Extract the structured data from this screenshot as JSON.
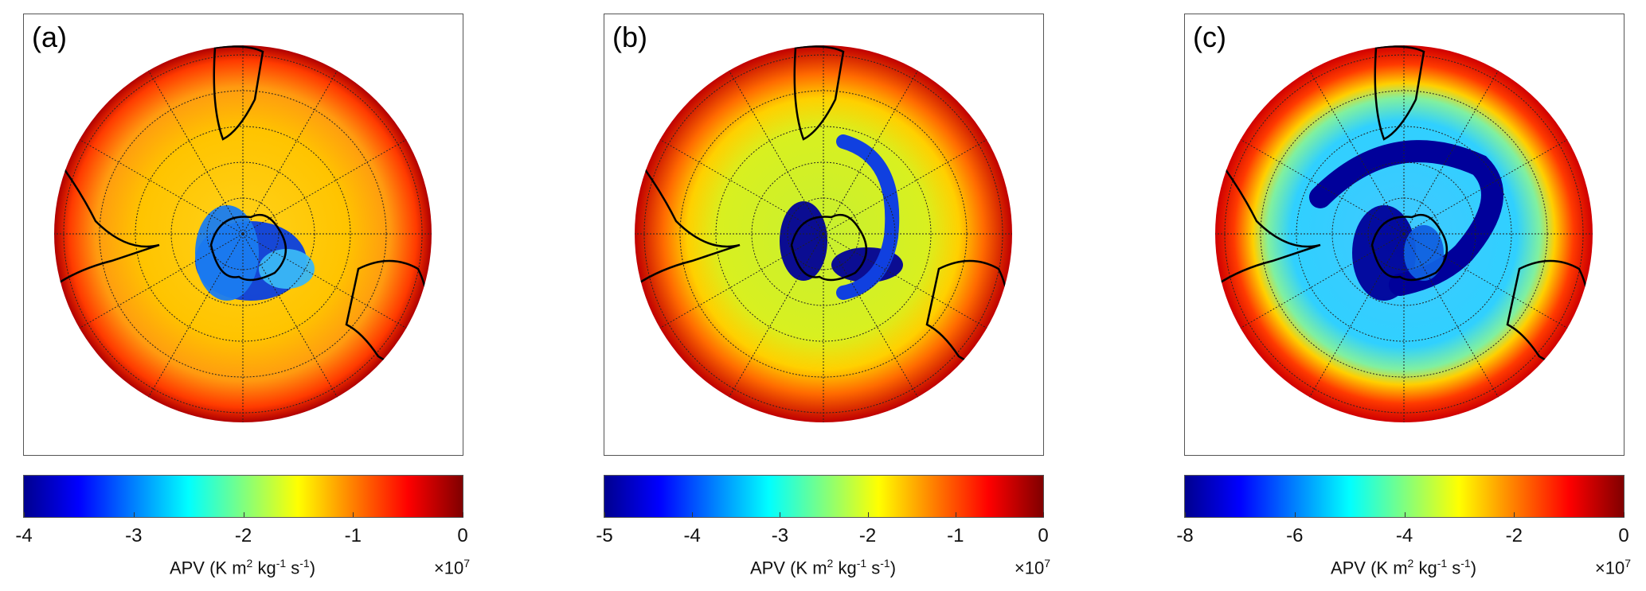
{
  "panels": [
    {
      "label": "(a)",
      "ticks": [
        "-4",
        "-3",
        "-2",
        "-1",
        "0"
      ],
      "min": -4,
      "max": 0,
      "unit_prefix": "APV (K m",
      "unit_sup1": "2",
      "unit_mid": " kg",
      "unit_sup2": "-1",
      "unit_mid2": " s",
      "unit_sup3": "-1",
      "unit_suffix": ")",
      "multiplier": "×10",
      "multiplier_exp": "7"
    },
    {
      "label": "(b)",
      "ticks": [
        "-5",
        "-4",
        "-3",
        "-2",
        "-1",
        "0"
      ],
      "min": -5,
      "max": 0,
      "unit_prefix": "APV (K m",
      "unit_sup1": "2",
      "unit_mid": " kg",
      "unit_sup2": "-1",
      "unit_mid2": " s",
      "unit_sup3": "-1",
      "unit_suffix": ")",
      "multiplier": "×10",
      "multiplier_exp": "7"
    },
    {
      "label": "(c)",
      "ticks": [
        "-8",
        "-6",
        "-4",
        "-2",
        "0"
      ],
      "min": -8,
      "max": 0,
      "unit_prefix": "APV (K m",
      "unit_sup1": "2",
      "unit_mid": " kg",
      "unit_sup2": "-1",
      "unit_mid2": " s",
      "unit_sup3": "-1",
      "unit_suffix": ")",
      "multiplier": "×10",
      "multiplier_exp": "7"
    }
  ],
  "colors": {
    "dark_blue": "#00008f",
    "blue": "#0000ff",
    "cyan": "#00ffff",
    "yellow": "#ffff00",
    "red": "#ff0000",
    "dark_red": "#800000"
  }
}
